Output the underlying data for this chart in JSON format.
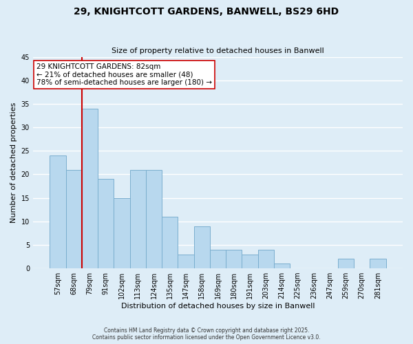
{
  "title": "29, KNIGHTCOTT GARDENS, BANWELL, BS29 6HD",
  "subtitle": "Size of property relative to detached houses in Banwell",
  "xlabel": "Distribution of detached houses by size in Banwell",
  "ylabel": "Number of detached properties",
  "bar_labels": [
    "57sqm",
    "68sqm",
    "79sqm",
    "91sqm",
    "102sqm",
    "113sqm",
    "124sqm",
    "135sqm",
    "147sqm",
    "158sqm",
    "169sqm",
    "180sqm",
    "191sqm",
    "203sqm",
    "214sqm",
    "225sqm",
    "236sqm",
    "247sqm",
    "259sqm",
    "270sqm",
    "281sqm"
  ],
  "bar_values": [
    24,
    21,
    34,
    19,
    15,
    21,
    21,
    11,
    3,
    9,
    4,
    4,
    3,
    4,
    1,
    0,
    0,
    0,
    2,
    0,
    2
  ],
  "bar_color": "#b8d8ee",
  "bar_edge_color": "#7aaece",
  "vline_index": 2,
  "vline_color": "#cc0000",
  "ylim": [
    0,
    45
  ],
  "yticks": [
    0,
    5,
    10,
    15,
    20,
    25,
    30,
    35,
    40,
    45
  ],
  "annotation_title": "29 KNIGHTCOTT GARDENS: 82sqm",
  "annotation_line1": "← 21% of detached houses are smaller (48)",
  "annotation_line2": "78% of semi-detached houses are larger (180) →",
  "annotation_box_facecolor": "white",
  "annotation_box_edgecolor": "#cc0000",
  "footer1": "Contains HM Land Registry data © Crown copyright and database right 2025.",
  "footer2": "Contains public sector information licensed under the Open Government Licence v3.0.",
  "bg_color": "#deedf7",
  "plot_bg_color": "#deedf7",
  "grid_color": "white",
  "title_fontsize": 10,
  "subtitle_fontsize": 8,
  "axis_label_fontsize": 8,
  "tick_fontsize": 7,
  "annotation_fontsize": 7.5,
  "footer_fontsize": 5.5
}
